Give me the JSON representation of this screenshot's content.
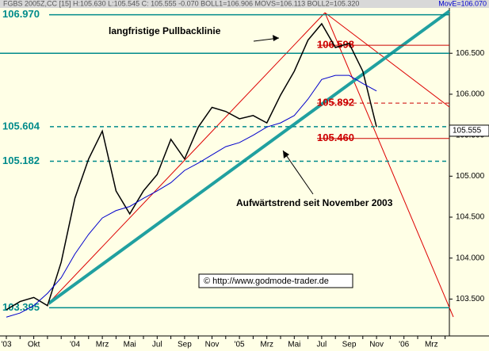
{
  "chart_data": {
    "type": "line",
    "header": "FGBS 2005Z,CC [15] H:105.630 L:105.545 C: 105.555 -0.070 BOLL1=106.906 MOVS=106.113 BOLL2=105.320",
    "header_right": "MovE=106.070",
    "categories": [
      "'03",
      null,
      "Okt",
      null,
      null,
      "'04",
      null,
      "Mrz",
      null,
      "Mai",
      null,
      "Jul",
      null,
      "Sep",
      null,
      "Nov",
      null,
      "'05",
      null,
      "Mrz",
      null,
      "Mai",
      null,
      "Jul",
      null,
      "Sep",
      null,
      "Nov",
      null,
      "'06",
      null,
      "Mrz",
      null
    ],
    "series": [
      {
        "color": "#000000",
        "values": [
          103.37,
          103.47,
          103.52,
          103.42,
          103.95,
          104.73,
          105.21,
          105.55,
          104.82,
          104.54,
          104.82,
          105.02,
          105.45,
          105.21,
          105.6,
          105.84,
          105.79,
          105.7,
          105.74,
          105.65,
          105.99,
          106.28,
          106.66,
          106.86,
          106.57,
          106.62,
          106.28,
          105.6,
          null,
          null,
          null,
          null,
          null
        ]
      },
      {
        "color": "#0000cc",
        "values": [
          103.28,
          103.33,
          103.42,
          103.57,
          103.76,
          104.05,
          104.29,
          104.49,
          104.58,
          104.63,
          104.73,
          104.82,
          104.92,
          105.07,
          105.16,
          105.26,
          105.36,
          105.41,
          105.5,
          105.6,
          105.65,
          105.74,
          105.94,
          106.18,
          106.23,
          106.23,
          106.13,
          106.04,
          null,
          null,
          null,
          null,
          null
        ]
      }
    ],
    "ylim": [
      103.05,
      107.15
    ],
    "yticks": [
      {
        "value": 106.5,
        "label": "106.500"
      },
      {
        "value": 106,
        "label": "106.000"
      },
      {
        "value": 105.5,
        "label": "105.500"
      },
      {
        "value": 105,
        "label": "105.000"
      },
      {
        "value": 104.5,
        "label": "104.500"
      },
      {
        "value": 104,
        "label": "104.000"
      },
      {
        "value": 103.5,
        "label": "103.500"
      }
    ],
    "last_price": {
      "value": 105.555,
      "label": "105.555"
    },
    "levels": [
      {
        "value": 106.97,
        "label": "106.970",
        "color": "#008b8b",
        "style": "solid",
        "side": "left"
      },
      {
        "value": 106.5,
        "color": "#008b8b",
        "style": "solid",
        "side": "left"
      },
      {
        "value": 105.604,
        "label": "105.604",
        "color": "#008b8b",
        "style": "dashed",
        "side": "left"
      },
      {
        "value": 105.182,
        "label": "105.182",
        "color": "#008b8b",
        "style": "dashed",
        "side": "left"
      },
      {
        "value": 103.395,
        "label": "103.395",
        "color": "#008b8b",
        "style": "solid",
        "side": "left"
      },
      {
        "value": 106.598,
        "label": "106.598",
        "color": "#cc0000",
        "style": "solid",
        "side": "right"
      },
      {
        "value": 105.892,
        "label": "105.892",
        "color": "#cc0000",
        "style": "dashed",
        "side": "right"
      },
      {
        "value": 105.46,
        "label": "105.460",
        "color": "#cc0000",
        "style": "solid",
        "side": "right"
      }
    ],
    "annotations": [
      "langfristige Pullbacklinie",
      "Aufwärtstrend seit November 2003",
      "© http://www.godmode-trader.de"
    ]
  }
}
